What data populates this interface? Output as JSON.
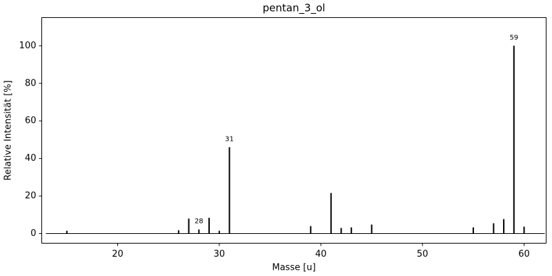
{
  "chart_data": {
    "type": "stem",
    "title": "pentan_3_ol",
    "x_label": "Masse [u]",
    "y_label": "Relative Intensität [%]",
    "x": [
      15,
      26,
      27,
      28,
      29,
      30,
      31,
      39,
      41,
      42,
      43,
      45,
      55,
      57,
      58,
      59,
      60
    ],
    "values": [
      1.5,
      1.8,
      8,
      2.2,
      8.4,
      1.5,
      46,
      4,
      21.6,
      3,
      3.3,
      4.8,
      3.3,
      5.5,
      7.7,
      100,
      3.7
    ],
    "annotated": [
      28,
      31,
      59
    ],
    "color": "#000000",
    "xlim": [
      12.53,
      62.17
    ],
    "xticks": [
      20,
      30,
      40,
      50,
      60
    ],
    "ylim": [
      -5.13,
      115
    ],
    "yticks": [
      0,
      20,
      40,
      60,
      80,
      100
    ]
  }
}
